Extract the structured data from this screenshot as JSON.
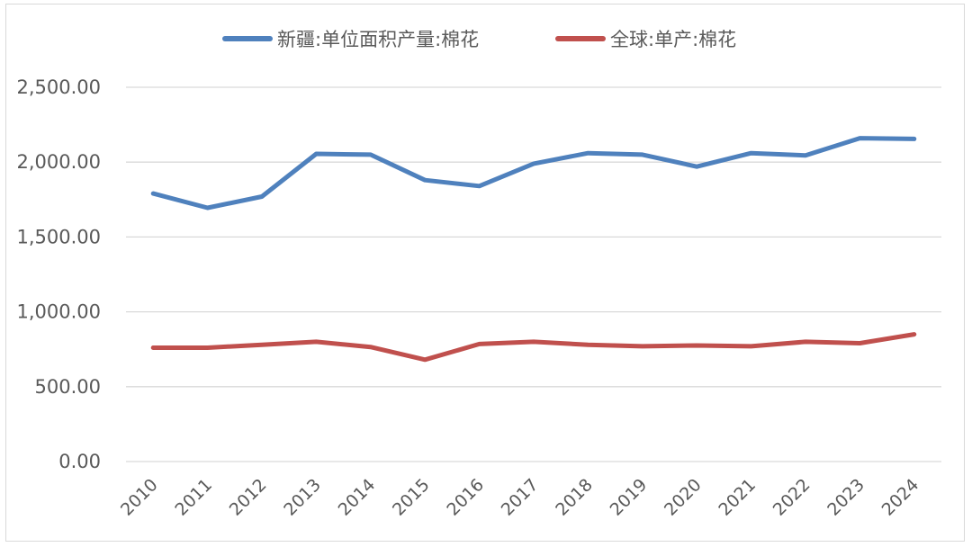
{
  "chart_data": {
    "type": "line",
    "title": "",
    "xlabel": "",
    "ylabel": "",
    "categories": [
      "2010",
      "2011",
      "2012",
      "2013",
      "2014",
      "2015",
      "2016",
      "2017",
      "2018",
      "2019",
      "2020",
      "2021",
      "2022",
      "2023",
      "2024"
    ],
    "ylim": [
      0,
      2500
    ],
    "y_ticks": [
      "0.00",
      "500.00",
      "1,000.00",
      "1,500.00",
      "2,000.00",
      "2,500.00"
    ],
    "grid": true,
    "legend_position": "top",
    "series": [
      {
        "name": "新疆:单位面积产量:棉花",
        "color": "#4f81bd",
        "values": [
          1790,
          1695,
          1770,
          2055,
          2050,
          1880,
          1840,
          1990,
          2060,
          2050,
          1970,
          2060,
          2045,
          2160,
          2155
        ]
      },
      {
        "name": "全球:单产:棉花",
        "color": "#c0504d",
        "values": [
          760,
          760,
          780,
          800,
          765,
          680,
          785,
          800,
          780,
          770,
          775,
          770,
          800,
          790,
          850
        ]
      }
    ]
  }
}
